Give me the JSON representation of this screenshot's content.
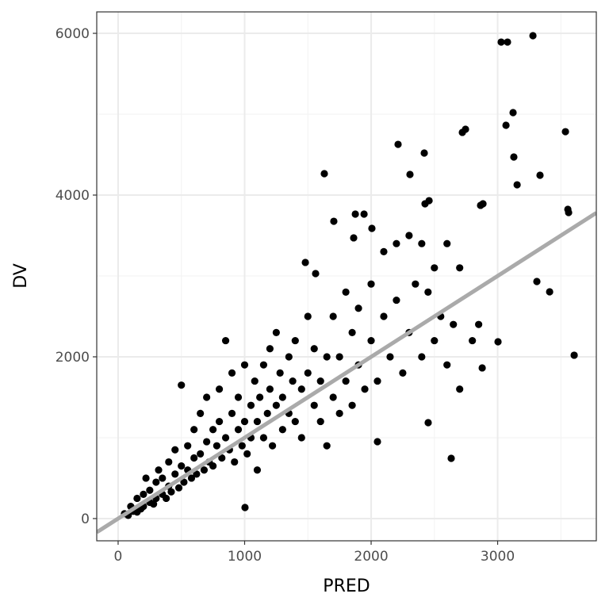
{
  "chart_data": {
    "type": "scatter",
    "x_label": "PRED",
    "y_label": "DV",
    "xlim": [
      -169,
      3780
    ],
    "ylim": [
      -275,
      6265
    ],
    "xticks": [
      0,
      1000,
      2000,
      3000
    ],
    "yticks": [
      0,
      2000,
      4000,
      6000
    ],
    "x_minor_grid": [
      500,
      1500,
      2500,
      3500
    ],
    "y_minor_grid": [
      1000,
      3000,
      5000
    ],
    "grid": true,
    "color": "#000000",
    "reference_line": {
      "slope": 1,
      "intercept": 0,
      "color": "#aaaaaa"
    },
    "x": [
      3028,
      3078,
      3279,
      2746,
      2721,
      3122,
      3066,
      3536,
      2213,
      2420,
      1630,
      2307,
      3128,
      3335,
      3154,
      2458,
      2426,
      3555,
      3561,
      2884,
      2865,
      1705,
      1875,
      1944,
      1862,
      2006,
      3310,
      3411,
      3605,
      3003,
      2878,
      2633,
      2050,
      2451,
      1480,
      1561,
      1003,
      50,
      80,
      100,
      120,
      150,
      150,
      180,
      200,
      200,
      220,
      250,
      250,
      280,
      300,
      300,
      320,
      350,
      350,
      380,
      400,
      400,
      420,
      450,
      450,
      480,
      500,
      500,
      520,
      550,
      550,
      580,
      600,
      600,
      620,
      650,
      650,
      680,
      700,
      700,
      720,
      750,
      750,
      780,
      800,
      800,
      820,
      850,
      850,
      880,
      900,
      900,
      920,
      950,
      950,
      980,
      1000,
      1000,
      1020,
      1050,
      1050,
      1080,
      1100,
      1100,
      1120,
      1150,
      1150,
      1180,
      1200,
      1200,
      1220,
      1250,
      1250,
      1280,
      1300,
      1300,
      1350,
      1350,
      1380,
      1400,
      1400,
      1450,
      1450,
      1500,
      1500,
      1550,
      1550,
      1600,
      1600,
      1650,
      1650,
      1700,
      1700,
      1750,
      1750,
      1800,
      1800,
      1850,
      1850,
      1900,
      1900,
      1950,
      2000,
      2000,
      2050,
      2100,
      2100,
      2150,
      2200,
      2200,
      2250,
      2300,
      2300,
      2350,
      2400,
      2400,
      2450,
      2500,
      2500,
      2550,
      2600,
      2600,
      2650,
      2700,
      2700,
      2800,
      2850
    ],
    "values": [
      5892,
      5892,
      5971,
      4814,
      4775,
      5020,
      4863,
      4784,
      4627,
      4520,
      4265,
      4255,
      4471,
      4245,
      4127,
      3931,
      3892,
      3824,
      3784,
      3892,
      3873,
      3676,
      3765,
      3765,
      3471,
      3588,
      2931,
      2804,
      2020,
      2186,
      1863,
      745,
      951,
      1186,
      3167,
      3029,
      137,
      60,
      40,
      150,
      90,
      250,
      80,
      120,
      300,
      150,
      500,
      200,
      350,
      180,
      450,
      250,
      600,
      300,
      500,
      250,
      700,
      400,
      330,
      550,
      850,
      380,
      650,
      1650,
      450,
      900,
      600,
      500,
      1100,
      750,
      550,
      1300,
      800,
      600,
      950,
      1500,
      700,
      1100,
      650,
      900,
      1600,
      1200,
      750,
      1000,
      2200,
      850,
      1300,
      1800,
      700,
      1100,
      1500,
      900,
      1900,
      1200,
      800,
      1400,
      1000,
      1700,
      1200,
      600,
      1500,
      1900,
      1000,
      1300,
      2100,
      1600,
      900,
      2300,
      1400,
      1800,
      1100,
      1500,
      2000,
      1300,
      1700,
      1200,
      2200,
      1600,
      1000,
      2500,
      1800,
      1400,
      2100,
      1700,
      1200,
      2000,
      900,
      2500,
      1500,
      2000,
      1300,
      2800,
      1700,
      2300,
      1400,
      2600,
      1900,
      1600,
      2900,
      2200,
      1700,
      3300,
      2500,
      2000,
      3400,
      2700,
      1800,
      3500,
      2300,
      2900,
      3400,
      2000,
      2800,
      3100,
      2200,
      2500,
      3400,
      1900,
      2400,
      3100,
      1600,
      2200,
      2400
    ]
  }
}
